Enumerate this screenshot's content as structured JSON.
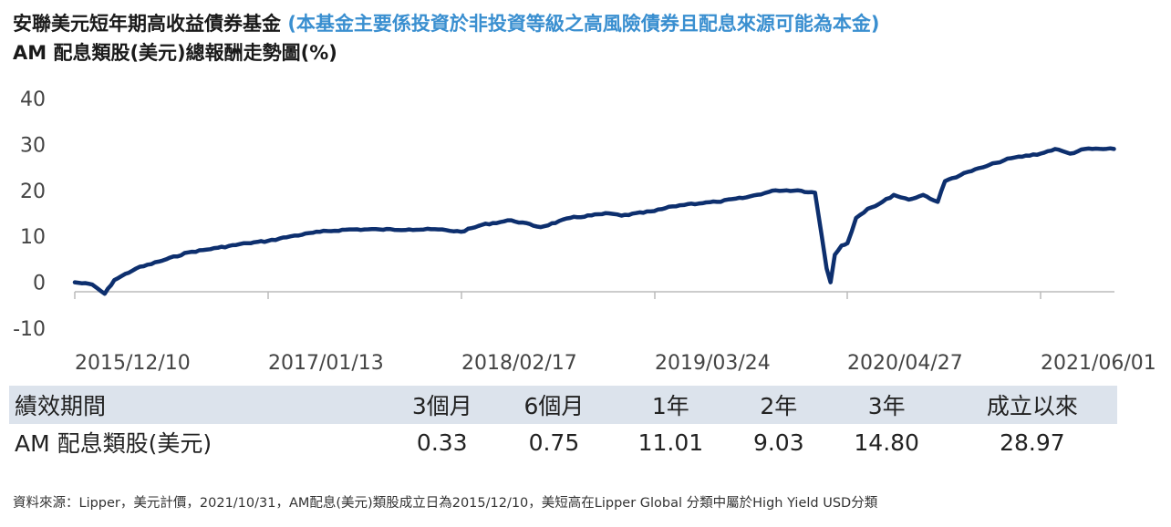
{
  "title": {
    "main": "安聯美元短年期高收益債券基金",
    "note": "(本基金主要係投資於非投資等級之高風險債券且配息來源可能為本金)",
    "subtitle": "AM 配息類股(美元)總報酬走勢圖(%)"
  },
  "colors": {
    "line": "#0d2f6e",
    "note": "#3a8fd0",
    "table_header_bg": "#dce3ec",
    "axis": "#bbbbbb"
  },
  "chart_data": {
    "type": "line",
    "ylim": [
      -10,
      40
    ],
    "yticks": [
      "40",
      "30",
      "20",
      "10",
      "0",
      "-10"
    ],
    "xticks": [
      "2015/12/10",
      "2017/01/13",
      "2018/02/17",
      "2019/03/24",
      "2020/04/27",
      "2021/06/01"
    ],
    "series": [
      {
        "x": [
          "2015/12/10",
          "2016/01/15",
          "2016/02/10",
          "2016/03/01",
          "2016/04/15",
          "2016/06/01",
          "2016/08/01",
          "2016/10/01",
          "2016/12/01",
          "2017/01/13",
          "2017/03/01",
          "2017/05/01",
          "2017/07/01",
          "2017/09/01",
          "2017/11/01",
          "2018/01/01",
          "2018/02/17",
          "2018/04/01",
          "2018/06/01",
          "2018/08/01",
          "2018/10/01",
          "2018/12/20",
          "2019/01/15",
          "2019/03/24",
          "2019/05/01",
          "2019/06/01",
          "2019/08/01",
          "2019/10/01",
          "2019/12/01",
          "2020/01/15",
          "2020/02/20",
          "2020/03/05",
          "2020/03/15",
          "2020/03/23",
          "2020/04/01",
          "2020/04/15",
          "2020/04/27",
          "2020/05/15",
          "2020/06/08",
          "2020/07/01",
          "2020/08/01",
          "2020/09/01",
          "2020/10/01",
          "2020/10/31",
          "2020/11/15",
          "2021/01/01",
          "2021/02/01",
          "2021/03/01",
          "2021/04/01",
          "2021/06/01",
          "2021/07/01",
          "2021/08/01",
          "2021/09/01",
          "2021/10/31"
        ],
        "y": [
          0,
          -0.5,
          -2.5,
          0.5,
          3,
          4.5,
          6.5,
          7.5,
          8.5,
          9,
          10,
          11,
          11.5,
          11.5,
          11.5,
          11.5,
          11,
          12.5,
          13.5,
          12,
          14,
          15,
          14.5,
          15.5,
          16.5,
          17,
          17.5,
          18.5,
          20,
          20,
          19.5,
          10,
          3,
          0,
          6,
          8,
          8.5,
          14,
          16,
          17,
          19,
          18,
          19,
          17.5,
          22,
          24,
          25,
          26,
          27,
          28,
          29,
          28,
          29,
          29
        ]
      }
    ]
  },
  "table": {
    "headers": [
      "績效期間",
      "3個月",
      "6個月",
      "1年",
      "2年",
      "3年",
      "成立以來"
    ],
    "rows": [
      {
        "label": "AM 配息類股(美元)",
        "values": [
          "0.33",
          "0.75",
          "11.01",
          "9.03",
          "14.80",
          "28.97"
        ]
      }
    ]
  },
  "footnote": "資料來源：Lipper，美元計價，2021/10/31，AM配息(美元)類股成立日為2015/12/10，美短高在Lipper Global 分類中屬於High Yield USD分類"
}
